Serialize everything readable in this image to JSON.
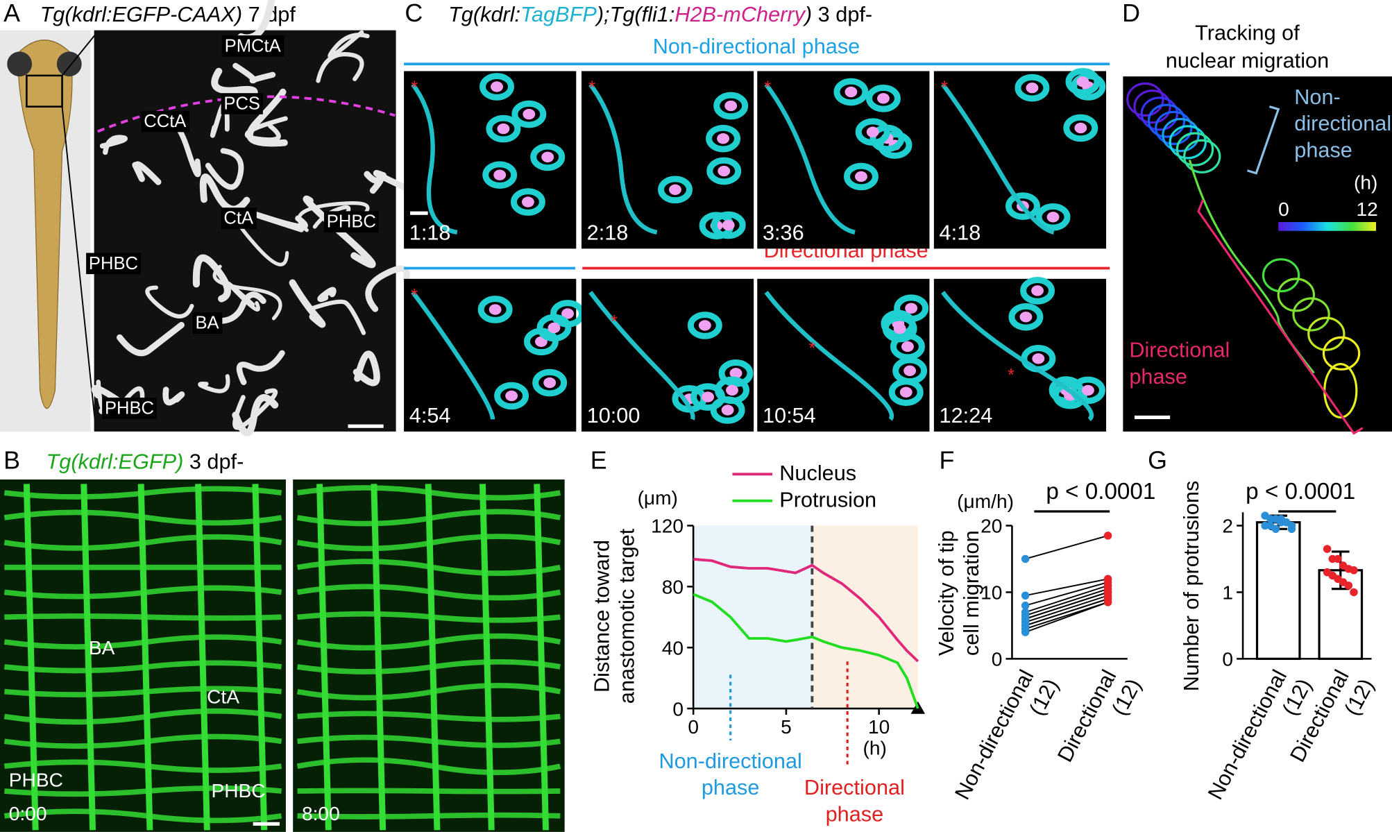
{
  "panel_a": {
    "letter": "A",
    "title_italic": "Tg(kdrl:EGFP-CAAX)",
    "title_rest": " 7 dpf",
    "labels": [
      "PMCtA",
      "PCS",
      "CCtA",
      "PHBC",
      "CtA",
      "PHBC",
      "BA",
      "PHBC"
    ]
  },
  "panel_b": {
    "letter": "B",
    "title_italic": "Tg(kdrl:EGFP)",
    "title_rest": " 3 dpf-",
    "labels": [
      "BA",
      "CtA",
      "PHBC",
      "PHBC"
    ],
    "times": [
      "0:00",
      "8:00"
    ]
  },
  "panel_c": {
    "letter": "C",
    "title_parts": [
      "Tg(kdrl:",
      "TagBFP",
      ");Tg(fli1:",
      "H2B-mCherry",
      ")",
      " 3 dpf-"
    ],
    "phase_top": "Non-directional phase",
    "phase_bottom": "Directional phase",
    "times": [
      "1:18",
      "2:18",
      "3:36",
      "4:18",
      "4:54",
      "10:00",
      "10:54",
      "12:24"
    ]
  },
  "panel_d": {
    "letter": "D",
    "title": [
      "Tracking of",
      "nuclear migration"
    ],
    "nondir": [
      "Non-",
      "directional",
      "phase"
    ],
    "dir": [
      "Directional",
      "phase"
    ],
    "unit": "(h)",
    "scale_min": "0",
    "scale_max": "12"
  },
  "chart_data": [
    {
      "type": "line",
      "panel": "E",
      "ylabel": [
        "Distance toward",
        "anastomotic target"
      ],
      "yunit": "(μm)",
      "xunit": "(h)",
      "x": [
        0,
        1,
        2,
        3,
        4,
        5,
        5.5,
        6.4,
        7,
        8,
        9,
        10,
        11,
        11.5,
        12.1
      ],
      "series": [
        {
          "name": "Nucleus",
          "color": "#e0287a",
          "values": [
            98,
            97,
            93,
            92,
            92,
            90,
            89,
            94,
            89,
            82,
            72,
            60,
            45,
            38,
            31
          ]
        },
        {
          "name": "Protrusion",
          "color": "#22dd22",
          "values": [
            75,
            70,
            60,
            46,
            46,
            44,
            45,
            47,
            44,
            40,
            38,
            35,
            30,
            20,
            0
          ]
        }
      ],
      "xlim": [
        0,
        12.1
      ],
      "ylim": [
        0,
        120
      ],
      "xticks": [
        0,
        5,
        10
      ],
      "yticks": [
        0,
        40,
        80,
        120
      ],
      "shaded": [
        {
          "from": 0,
          "to": 6.4,
          "color": "#eaf5fb"
        },
        {
          "from": 6.4,
          "to": 12.1,
          "color": "#fcefe3"
        }
      ],
      "vline": 6.4,
      "annotations": [
        {
          "text": [
            "Non-directional",
            "phase"
          ],
          "x": 2,
          "color": "#1e9be0"
        },
        {
          "text": [
            "Directional",
            "phase"
          ],
          "x": 8.3,
          "color": "#e02020"
        }
      ]
    },
    {
      "type": "dot",
      "panel": "F",
      "ylabel": [
        "Velocity of tip",
        "cell migration"
      ],
      "yunit": "(μm/h)",
      "p": "p < 0.0001",
      "categories": [
        [
          "Non-directional",
          "(12)"
        ],
        [
          "Directional",
          "(12)"
        ]
      ],
      "groups": [
        {
          "color": "#2a8fd6",
          "values": [
            15,
            9.5,
            8,
            7,
            6.5,
            6,
            6,
            5.5,
            5,
            5,
            4.5,
            4
          ]
        },
        {
          "color": "#e8232a",
          "values": [
            18.5,
            12,
            11.5,
            11,
            10.5,
            10,
            10,
            9.5,
            9,
            9,
            8.5,
            8.5
          ]
        }
      ],
      "ylim": [
        0,
        20
      ],
      "yticks": [
        0,
        10,
        20
      ]
    },
    {
      "type": "bar",
      "panel": "G",
      "ylabel": [
        "Number of protrusions"
      ],
      "p": "p < 0.0001",
      "categories": [
        [
          "Non-directional",
          "(12)"
        ],
        [
          "Directional",
          "(12)"
        ]
      ],
      "values": [
        2.05,
        1.33
      ],
      "errors": [
        0.1,
        0.28
      ],
      "points": [
        [
          2.15,
          2.1,
          2.1,
          2.05,
          2.05,
          2.0,
          2.0,
          2.0,
          1.95,
          2.1,
          2.05,
          1.95
        ],
        [
          1.65,
          1.5,
          1.5,
          1.4,
          1.35,
          1.33,
          1.3,
          1.25,
          1.2,
          1.15,
          1.1,
          1.0
        ]
      ],
      "colors": [
        "#2a8fd6",
        "#e8232a"
      ],
      "ylim": [
        0,
        2.2
      ],
      "yticks": [
        0,
        1,
        2
      ]
    }
  ]
}
